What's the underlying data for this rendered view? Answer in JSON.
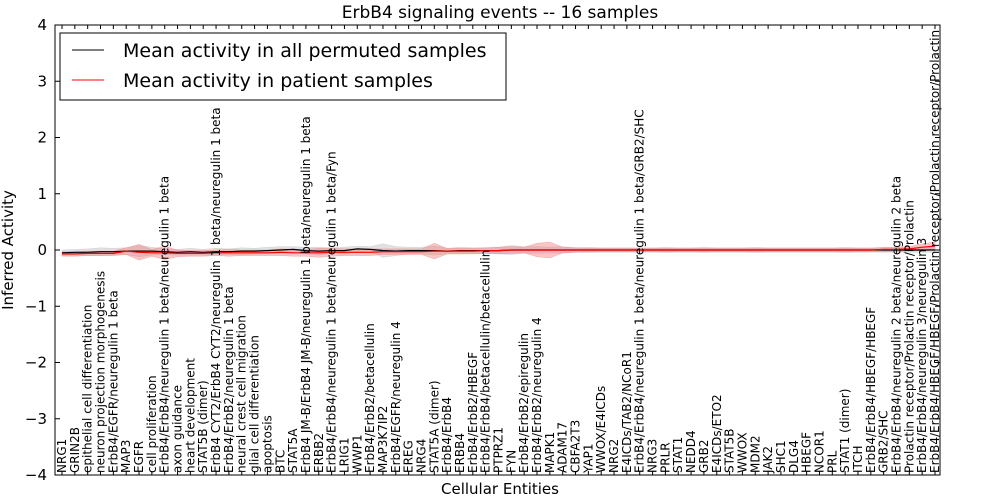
{
  "chart_data": {
    "type": "line",
    "title": "ErbB4 signaling events -- 16 samples",
    "xlabel": "Cellular Entities",
    "ylabel": "Inferred Activity",
    "ylim": [
      -4,
      4
    ],
    "yticks": [
      "−4",
      "−3",
      "−2",
      "−1",
      "0",
      "1",
      "2",
      "3",
      "4"
    ],
    "grid": false,
    "legend_position": "top-left",
    "colors": {
      "permuted": "#000000",
      "patient": "#ff0000",
      "patient_band": "#f08080",
      "permuted_band": "#bdbdbd"
    },
    "categories": [
      "NRG1",
      "GRIN2B",
      "epithelial cell differentiation",
      "neuron projection morphogenesis",
      "ErbB4/EGFR/neuregulin 1 beta",
      "MAP3",
      "EGFR",
      "cell proliferation",
      "ErbB4/ErbB4/neuregulin 1 beta/neuregulin 1 beta",
      "axon guidance",
      "heart development",
      "STAT5B (dimer)",
      "ErbB4 CYT2/ErbB4 CYT2/neuregulin 1 beta/neuregulin 1 beta",
      "ErbB4/ErbB2/neuregulin 1 beta",
      "neural crest cell migration",
      "glial cell differentiation",
      "apoptosis",
      "BTC",
      "STAT5A",
      "ErbB4 JM-B/ErbB4 JM-B/neuregulin 1 beta/neuregulin 1 beta",
      "ERBB2",
      "ErbB4/ErbB4/neuregulin 1 beta/neuregulin 1 beta/Fyn",
      "LRIG1",
      "WWP1",
      "ErbB4/ErbB2/betacellulin",
      "MAP3K7IP2",
      "ErbB4/EGFR/neuregulin 4",
      "EREG",
      "NRG4",
      "STAT5A (dimer)",
      "ErbB4/ErbB4",
      "ERBB4",
      "ErbB4/ErbB2/HBEGF",
      "ErbB4/ErbB4/betacellulin/betacellulin",
      "PTPRZ1",
      "FYN",
      "ErbB4/ErbB2/epiregulin",
      "ErbB4/ErbB2/neuregulin 4",
      "MAPK1",
      "ADAM17",
      "CBFA2T3",
      "YAP1",
      "WWOX/E4ICDs",
      "NRG2",
      "E4ICDs/TAB2/NCoR1",
      "ErbB4/ErbB4/neuregulin 1 beta/neuregulin 1 beta/GRB2/SHC",
      "NRG3",
      "PRLR",
      "STAT1",
      "NEDD4",
      "GRB2",
      "E4ICDs/ETO2",
      "STAT5B",
      "WWOX",
      "MDM2",
      "JAK2",
      "SHC1",
      "DLG4",
      "HBEGF",
      "NCOR1",
      "PRL",
      "STAT1 (dimer)",
      "ITCH",
      "ErbB4/ErbB4/HBEGF/HBEGF",
      "GRB2/SHC",
      "ErbB4/ErbB4/neuregulin 2 beta/neuregulin 2 beta",
      "Prolactin receptor/Prolactin receptor/Prolactin",
      "ErbB4/ErbB4/neuregulin 3/neuregulin 3",
      "ErbB4/ErbB4/HBEGF/HBEGF/Prolactin receptor/Prolactin receptor/Prolactin"
    ],
    "series": [
      {
        "name": "Mean activity in all permuted samples",
        "values": [
          -0.05,
          -0.04,
          -0.04,
          -0.03,
          -0.03,
          -0.02,
          -0.02,
          -0.02,
          -0.03,
          -0.04,
          -0.03,
          -0.04,
          -0.03,
          -0.03,
          -0.02,
          -0.02,
          -0.01,
          0.0,
          0.01,
          -0.01,
          -0.02,
          -0.01,
          -0.01,
          0.02,
          0.01,
          -0.01,
          -0.02,
          -0.01,
          -0.01,
          -0.01,
          -0.02,
          -0.01,
          -0.01,
          -0.01,
          -0.01,
          0.0,
          0.0,
          0.0,
          0.0,
          0.0,
          0.0,
          0.0,
          0.0,
          0.0,
          0.0,
          0.0,
          0.0,
          0.0,
          0.0,
          0.0,
          0.0,
          0.0,
          0.0,
          0.0,
          0.0,
          0.0,
          0.0,
          0.0,
          0.0,
          0.0,
          0.0,
          0.0,
          0.0,
          0.0,
          0.0,
          0.0,
          0.0,
          0.0,
          0.0
        ],
        "spread": [
          0.05,
          0.05,
          0.06,
          0.07,
          0.06,
          0.06,
          0.1,
          0.07,
          0.05,
          0.05,
          0.06,
          0.05,
          0.06,
          0.05,
          0.06,
          0.05,
          0.06,
          0.06,
          0.05,
          0.06,
          0.07,
          0.05,
          0.06,
          0.05,
          0.05,
          0.12,
          0.08,
          0.06,
          0.06,
          0.08,
          0.05,
          0.06,
          0.05,
          0.05,
          0.06,
          0.08,
          0.06,
          0.06,
          0.05,
          0.06,
          0.04,
          0.05,
          0.04,
          0.04,
          0.04,
          0.04,
          0.04,
          0.05,
          0.04,
          0.04,
          0.05,
          0.04,
          0.04,
          0.04,
          0.05,
          0.04,
          0.04,
          0.04,
          0.04,
          0.04,
          0.04,
          0.05,
          0.04,
          0.04,
          0.04,
          0.04,
          0.04,
          0.04,
          0.04
        ]
      },
      {
        "name": "Mean activity in patient samples",
        "values": [
          -0.07,
          -0.07,
          -0.06,
          -0.06,
          -0.06,
          -0.02,
          -0.04,
          -0.05,
          -0.05,
          -0.06,
          -0.06,
          -0.06,
          -0.05,
          -0.05,
          -0.05,
          -0.05,
          -0.05,
          -0.04,
          -0.05,
          -0.05,
          -0.05,
          -0.04,
          -0.04,
          -0.04,
          -0.04,
          -0.03,
          -0.03,
          -0.03,
          -0.03,
          -0.02,
          -0.02,
          -0.02,
          -0.02,
          -0.01,
          -0.01,
          0.0,
          0.0,
          0.0,
          0.0,
          0.0,
          0.0,
          0.0,
          0.0,
          0.0,
          0.0,
          0.0,
          0.0,
          0.0,
          0.0,
          0.0,
          0.0,
          0.0,
          0.0,
          0.0,
          0.0,
          0.0,
          0.0,
          0.0,
          0.0,
          0.0,
          0.0,
          0.0,
          0.0,
          0.0,
          0.01,
          0.01,
          0.02,
          0.05,
          0.07
        ],
        "spread": [
          0.04,
          0.04,
          0.04,
          0.04,
          0.04,
          0.06,
          0.14,
          0.06,
          0.12,
          0.06,
          0.05,
          0.05,
          0.05,
          0.06,
          0.05,
          0.05,
          0.05,
          0.06,
          0.06,
          0.06,
          0.08,
          0.07,
          0.06,
          0.06,
          0.06,
          0.05,
          0.05,
          0.05,
          0.05,
          0.14,
          0.05,
          0.05,
          0.05,
          0.05,
          0.06,
          0.06,
          0.05,
          0.12,
          0.14,
          0.05,
          0.04,
          0.03,
          0.03,
          0.03,
          0.03,
          0.03,
          0.03,
          0.03,
          0.03,
          0.03,
          0.03,
          0.03,
          0.03,
          0.03,
          0.03,
          0.03,
          0.03,
          0.03,
          0.03,
          0.03,
          0.03,
          0.03,
          0.03,
          0.03,
          0.04,
          0.04,
          0.04,
          0.06,
          0.07
        ]
      }
    ]
  }
}
